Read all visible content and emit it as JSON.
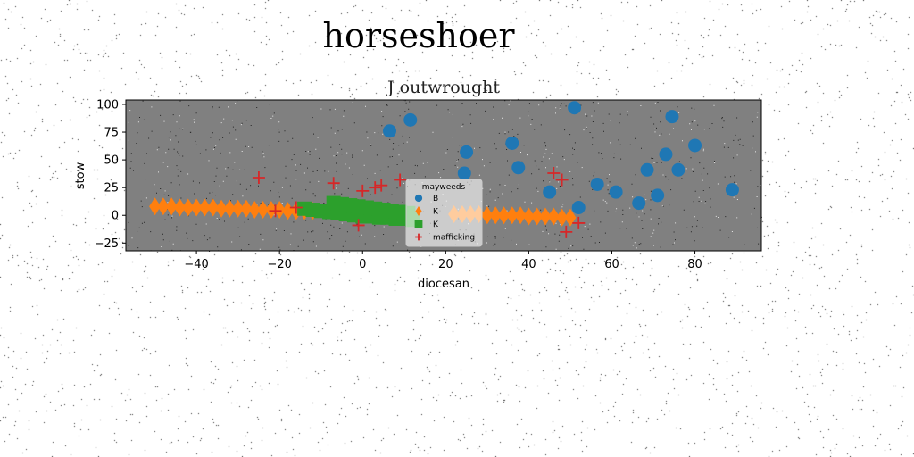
{
  "figure": {
    "suptitle": "horseshoer"
  },
  "chart_data": {
    "type": "scatter",
    "title": "J outwrought",
    "xlabel": "diocesan",
    "ylabel": "stow",
    "xlim": [
      -57,
      96
    ],
    "ylim": [
      -32,
      104
    ],
    "xticks": [
      -40,
      -20,
      0,
      20,
      40,
      60,
      80
    ],
    "yticks": [
      -25,
      0,
      25,
      50,
      75,
      100
    ],
    "grid": false,
    "background": "#808080",
    "legend": {
      "title": "mayweeds",
      "placement": "bottom-center"
    },
    "series": [
      {
        "name": "B",
        "marker": "circle",
        "color": "#1f77b4",
        "x": [
          6.5,
          11.5,
          51,
          25,
          24.5,
          36,
          37.5,
          45,
          56.5,
          61,
          66.5,
          68.5,
          71,
          73,
          74.5,
          76,
          80,
          89,
          52
        ],
        "y": [
          76,
          86,
          97,
          57,
          38,
          65,
          43,
          21,
          28,
          21,
          11,
          41,
          18,
          55,
          89,
          41,
          63,
          23,
          7
        ]
      },
      {
        "name": "K",
        "marker": "diamond",
        "color": "#ff7f0e",
        "x": [
          -50,
          -48,
          -46,
          -44,
          -42,
          -40,
          -38,
          -36,
          -34,
          -32,
          -30,
          -28,
          -26,
          -24,
          -22,
          -20,
          -18,
          -16,
          -14,
          -12,
          22,
          24,
          26,
          28,
          30,
          32,
          34,
          36,
          38,
          40,
          42,
          44,
          46,
          48,
          50
        ],
        "y": [
          8,
          8,
          8,
          7,
          7,
          7,
          7,
          7,
          6,
          6,
          6,
          6,
          5,
          5,
          5,
          5,
          4,
          4,
          4,
          4,
          1,
          1,
          1,
          1,
          0,
          0,
          0,
          0,
          0,
          -1,
          -1,
          -1,
          -1,
          -2,
          -2
        ]
      },
      {
        "name": "K",
        "marker": "square",
        "color": "#2ca02c",
        "x": [
          -14,
          -12,
          -10,
          -8,
          -6,
          -4,
          -2,
          0,
          2,
          4,
          6,
          8,
          10,
          12,
          -5,
          -3,
          -1,
          1,
          3,
          5,
          7,
          -7,
          9,
          11
        ],
        "y": [
          6,
          5,
          4,
          3,
          2,
          1,
          0,
          -1,
          -1,
          -2,
          -2,
          -3,
          -3,
          -4,
          10,
          9,
          8,
          7,
          6,
          5,
          4,
          11,
          3,
          2
        ]
      },
      {
        "name": "mafficking",
        "marker": "plus",
        "color": "#d62728",
        "x": [
          -25,
          -7,
          -21,
          -16,
          0,
          3,
          4.5,
          9,
          46,
          48,
          52,
          49,
          -1
        ],
        "y": [
          34,
          29,
          4,
          7,
          22,
          25,
          27,
          32,
          38,
          32,
          -7,
          -15,
          -9
        ]
      }
    ]
  }
}
